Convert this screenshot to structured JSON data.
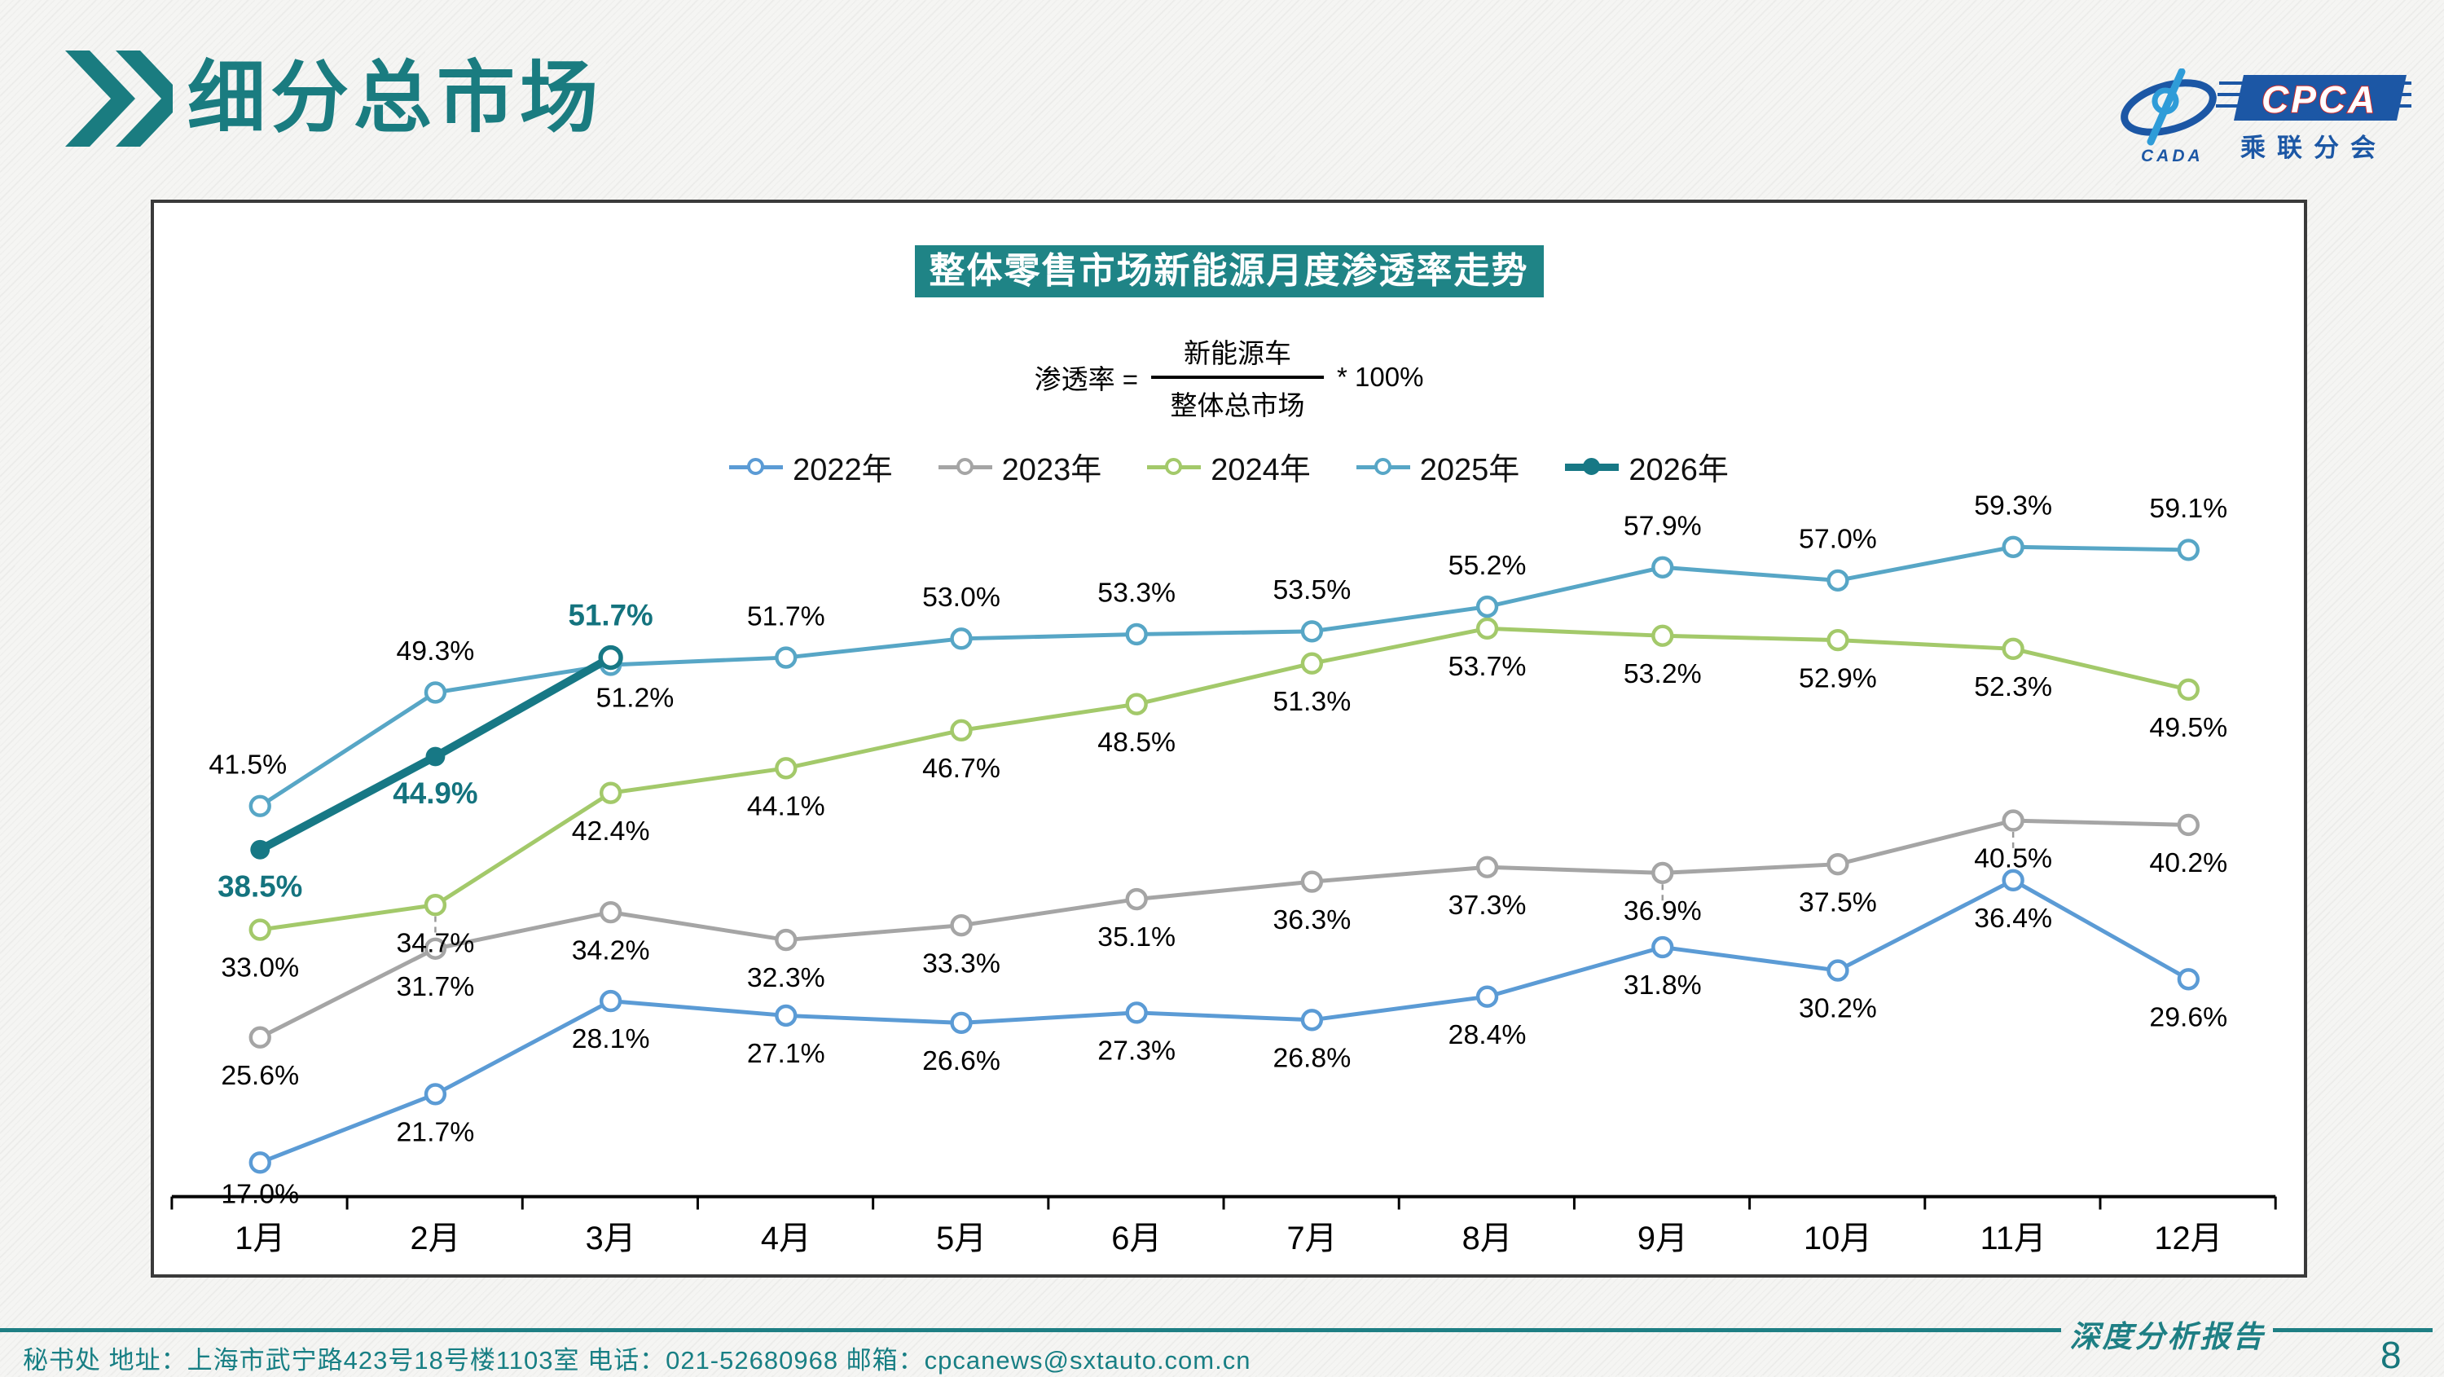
{
  "header": {
    "title": "细分总市场"
  },
  "logo": {
    "cpca": "CPCA",
    "cada": "CADA",
    "sub": "乘联分会"
  },
  "panel": {
    "chart_title": "整体零售市场新能源月度渗透率走势",
    "formula": {
      "lhs": "渗透率 =",
      "numerator": "新能源车",
      "denominator": "整体总市场",
      "rhs": "* 100%"
    }
  },
  "chart_data": {
    "type": "line",
    "title": "整体零售市场新能源月度渗透率走势",
    "unit": "%",
    "ylim": [
      14,
      63
    ],
    "grid": false,
    "legend_position": "top-center",
    "categories": [
      "1月",
      "2月",
      "3月",
      "4月",
      "5月",
      "6月",
      "7月",
      "8月",
      "9月",
      "10月",
      "11月",
      "12月"
    ],
    "series": [
      {
        "name": "2022年",
        "color": "#5B9BD5",
        "marker": "open",
        "label_side": "below",
        "values": [
          17.0,
          21.7,
          28.1,
          27.1,
          26.6,
          27.3,
          26.8,
          28.4,
          31.8,
          30.2,
          36.4,
          29.6
        ]
      },
      {
        "name": "2023年",
        "color": "#A5A5A5",
        "marker": "open",
        "label_side": "below",
        "values": [
          25.6,
          31.7,
          34.2,
          32.3,
          33.3,
          35.1,
          36.3,
          37.3,
          36.9,
          37.5,
          40.5,
          40.2
        ]
      },
      {
        "name": "2024年",
        "color": "#A3C96A",
        "marker": "open",
        "label_side": "below",
        "values": [
          33.0,
          34.7,
          42.4,
          44.1,
          46.7,
          48.5,
          51.3,
          53.7,
          53.2,
          52.9,
          52.3,
          49.5
        ]
      },
      {
        "name": "2025年",
        "color": "#57A6C6",
        "marker": "open",
        "label_side": "above",
        "values": [
          41.5,
          49.3,
          51.2,
          51.7,
          53.0,
          53.3,
          53.5,
          55.2,
          57.9,
          57.0,
          59.3,
          59.1
        ]
      },
      {
        "name": "2026年",
        "color": "#177885",
        "marker": "filled",
        "label_side": "below",
        "bold_labels": true,
        "values": [
          38.5,
          44.9,
          51.7
        ]
      }
    ]
  },
  "footer": {
    "contact": "秘书处  地址：上海市武宁路423号18号楼1103室 电话：021-52680968  邮箱：cpcanews@sxtauto.com.cn",
    "report_label": "深度分析报告",
    "page": "8"
  }
}
